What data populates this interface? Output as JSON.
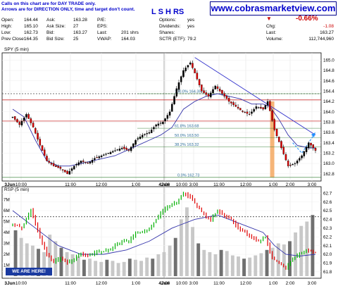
{
  "header": {
    "notes": [
      "Calls on this chart are for DAY TRADE only.",
      "Arrows are for DIRECTION ONLY, time and target don't count."
    ],
    "stats_col1": [
      {
        "label": "Open:",
        "value": "164.44"
      },
      {
        "label": "High:",
        "value": "165.10"
      },
      {
        "label": "Low:",
        "value": "162.73"
      },
      {
        "label": "Prev Close:",
        "value": "164.35"
      }
    ],
    "stats_col2": [
      {
        "label": "Ask:",
        "value": "163.28"
      },
      {
        "label": "Ask Size:",
        "value": "27"
      },
      {
        "label": "Bid:",
        "value": "163.27"
      },
      {
        "label": "Bid Size:",
        "value": "25"
      }
    ],
    "stats_col3": [
      {
        "label": "P/E:",
        "value": ""
      },
      {
        "label": "EPS:",
        "value": ""
      },
      {
        "label": "Last:",
        "value": "201 shrs"
      },
      {
        "label": "VWAP:",
        "value": "164.03"
      }
    ],
    "stats_col4": [
      {
        "label": "Options:",
        "value": "yes"
      },
      {
        "label": "Dividends:",
        "value": "yes"
      },
      {
        "label": "Shares:",
        "value": ""
      },
      {
        "label": "SCTR (ETF):",
        "value": "79.2"
      }
    ],
    "pattern_title": "L S H RS",
    "website": "www.cobrasmarketview.com",
    "summary": {
      "pct_change": "-0.66%",
      "rows": [
        {
          "label": "Chg:",
          "value": "-1.08"
        },
        {
          "label": "Last:",
          "value": "163.27"
        },
        {
          "label": "Volume:",
          "value": "112,744,960"
        }
      ],
      "down_marker": "▼"
    }
  },
  "main_panel_label": "SPY (5 min)",
  "rsi_panel_label": "RSP (5 min)",
  "badge": "WE ARE HERE!",
  "colors": {
    "bull": "#00b000",
    "bear": "#e00000",
    "neutral": "#000000",
    "ma": "#3333aa",
    "trendline": "#3333cc",
    "fib": "#2b7a2b",
    "level": "#cc3333",
    "highlight": "#f5a860",
    "arrow": "#1e90ff",
    "volume": "#c8c8c8",
    "volume_dark": "#707070"
  },
  "chart_data": [
    {
      "type": "candlestick",
      "title": "SPY (5 min)",
      "x_ticks": [
        "3Jun",
        "10:00",
        "11:00",
        "12:00",
        "1:00",
        "2:00",
        "3:00",
        "4Jun",
        "10:00",
        "11:00",
        "12:00",
        "1:00",
        "2:00",
        "3:00"
      ],
      "ylim": [
        162.7,
        165.1
      ],
      "y_ticks": [
        "162.8",
        "163.0",
        "163.2",
        "163.4",
        "163.6",
        "163.8",
        "164.0",
        "164.2",
        "164.4",
        "164.6",
        "164.8",
        "165.0"
      ],
      "close_path": [
        [
          0,
          163.9
        ],
        [
          3,
          163.75
        ],
        [
          6,
          163.95
        ],
        [
          9,
          163.7
        ],
        [
          12,
          163.35
        ],
        [
          15,
          163.05
        ],
        [
          18,
          162.95
        ],
        [
          21,
          162.9
        ],
        [
          24,
          162.8
        ],
        [
          27,
          162.95
        ],
        [
          30,
          163.05
        ],
        [
          33,
          163.0
        ],
        [
          36,
          163.1
        ],
        [
          39,
          163.15
        ],
        [
          42,
          163.2
        ],
        [
          45,
          163.25
        ],
        [
          48,
          163.3
        ],
        [
          51,
          163.25
        ],
        [
          54,
          163.45
        ],
        [
          57,
          163.55
        ],
        [
          60,
          163.6
        ],
        [
          63,
          163.75
        ],
        [
          66,
          163.8
        ],
        [
          69,
          164.0
        ],
        [
          72,
          164.45
        ],
        [
          75,
          164.8
        ],
        [
          78,
          164.95
        ],
        [
          80,
          164.75
        ],
        [
          83,
          164.4
        ],
        [
          86,
          164.3
        ],
        [
          89,
          164.5
        ],
        [
          92,
          164.35
        ],
        [
          95,
          164.2
        ],
        [
          98,
          164.1
        ],
        [
          101,
          164.0
        ],
        [
          104,
          163.95
        ],
        [
          107,
          164.1
        ],
        [
          110,
          164.05
        ],
        [
          112,
          164.2
        ],
        [
          115,
          163.65
        ],
        [
          118,
          163.3
        ],
        [
          121,
          162.95
        ],
        [
          124,
          163.0
        ],
        [
          127,
          163.15
        ],
        [
          130,
          163.4
        ],
        [
          133,
          163.25
        ]
      ],
      "moving_average_path": [
        [
          0,
          164.05
        ],
        [
          5,
          163.9
        ],
        [
          10,
          163.45
        ],
        [
          15,
          163.05
        ],
        [
          20,
          162.95
        ],
        [
          25,
          162.95
        ],
        [
          30,
          163.0
        ],
        [
          35,
          163.05
        ],
        [
          40,
          163.1
        ],
        [
          45,
          163.15
        ],
        [
          50,
          163.25
        ],
        [
          55,
          163.35
        ],
        [
          60,
          163.45
        ],
        [
          65,
          163.55
        ],
        [
          70,
          163.7
        ],
        [
          75,
          164.05
        ],
        [
          80,
          164.2
        ],
        [
          85,
          164.3
        ],
        [
          90,
          164.35
        ],
        [
          95,
          164.3
        ],
        [
          100,
          164.25
        ],
        [
          105,
          164.15
        ],
        [
          110,
          164.15
        ],
        [
          113,
          164.1
        ],
        [
          117,
          163.85
        ],
        [
          121,
          163.55
        ],
        [
          125,
          163.35
        ],
        [
          130,
          163.3
        ],
        [
          133,
          163.3
        ]
      ],
      "trendline": [
        [
          80,
          165.05
        ],
        [
          133,
          163.55
        ]
      ],
      "horizontal_levels": [
        164.35,
        164.23,
        163.82
      ],
      "fibonacci": [
        {
          "label": "0.0%  162.73",
          "value": 162.73
        },
        {
          "label": "38.2%  163.32",
          "value": 163.32
        },
        {
          "label": "50.0%  163.50",
          "value": 163.5
        },
        {
          "label": "61.8%  163.68",
          "value": 163.68
        },
        {
          "label": "100.0%  164.35",
          "value": 164.35
        }
      ],
      "highlight_bar": {
        "x": 114,
        "from": 162.73,
        "to": 164.2
      },
      "projection_arrow": [
        [
          123,
          163.4
        ],
        [
          127,
          163.2
        ],
        [
          133,
          163.6
        ]
      ]
    },
    {
      "type": "line",
      "title": "RSP (5 min)",
      "ylim": [
        61.75,
        62.75
      ],
      "y_ticks": [
        "61.8",
        "61.9",
        "62.0",
        "62.1",
        "62.2",
        "62.3",
        "62.4",
        "62.5",
        "62.6",
        "62.7"
      ],
      "volume_ticks": [
        "1M",
        "2M",
        "3M",
        "4M",
        "5M",
        "6M",
        "7M"
      ],
      "volume_max": 8,
      "price_path": [
        [
          0,
          62.35
        ],
        [
          4,
          62.3
        ],
        [
          8,
          62.5
        ],
        [
          12,
          62.2
        ],
        [
          15,
          62.0
        ],
        [
          18,
          61.92
        ],
        [
          21,
          61.95
        ],
        [
          24,
          61.9
        ],
        [
          27,
          61.95
        ],
        [
          30,
          62.0
        ],
        [
          33,
          61.98
        ],
        [
          36,
          62.02
        ],
        [
          39,
          62.03
        ],
        [
          42,
          62.05
        ],
        [
          45,
          62.1
        ],
        [
          48,
          62.15
        ],
        [
          51,
          62.15
        ],
        [
          54,
          62.25
        ],
        [
          57,
          62.25
        ],
        [
          60,
          62.3
        ],
        [
          63,
          62.4
        ],
        [
          66,
          62.5
        ],
        [
          69,
          62.55
        ],
        [
          72,
          62.6
        ],
        [
          75,
          62.7
        ],
        [
          78,
          62.65
        ],
        [
          81,
          62.55
        ],
        [
          84,
          62.45
        ],
        [
          87,
          62.4
        ],
        [
          90,
          62.5
        ],
        [
          93,
          62.45
        ],
        [
          96,
          62.4
        ],
        [
          99,
          62.3
        ],
        [
          102,
          62.25
        ],
        [
          105,
          62.2
        ],
        [
          108,
          62.15
        ],
        [
          111,
          62.2
        ],
        [
          114,
          61.95
        ],
        [
          117,
          61.9
        ],
        [
          120,
          61.85
        ],
        [
          123,
          61.95
        ],
        [
          126,
          62.0
        ],
        [
          129,
          62.05
        ],
        [
          133,
          62.02
        ]
      ],
      "moving_average_path": [
        [
          0,
          62.5
        ],
        [
          10,
          62.3
        ],
        [
          20,
          62.1
        ],
        [
          30,
          62.0
        ],
        [
          40,
          62.0
        ],
        [
          50,
          62.05
        ],
        [
          60,
          62.15
        ],
        [
          70,
          62.3
        ],
        [
          80,
          62.4
        ],
        [
          90,
          62.45
        ],
        [
          100,
          62.35
        ],
        [
          110,
          62.25
        ],
        [
          115,
          62.1
        ],
        [
          120,
          62.0
        ],
        [
          126,
          61.98
        ],
        [
          133,
          62.0
        ]
      ],
      "horizontal_level": 62.43,
      "volume": [
        4.2,
        3.5,
        3.0,
        2.8,
        2.5,
        2.2,
        3.8,
        3.2,
        2.6,
        2.2,
        2.0,
        1.8,
        1.5,
        1.6,
        1.4,
        1.3,
        1.5,
        1.4,
        1.2,
        1.3,
        1.6,
        1.5,
        1.4,
        1.7,
        1.6,
        2.0,
        2.2,
        2.8,
        3.5,
        5.2,
        6.3,
        4.5,
        3.0,
        2.4,
        2.2,
        2.0,
        2.4,
        2.3,
        1.9,
        1.8,
        1.6,
        1.7,
        1.9,
        2.1,
        2.4,
        2.6,
        3.0,
        2.9,
        3.2,
        4.0,
        4.6,
        5.0,
        5.6
      ]
    }
  ]
}
